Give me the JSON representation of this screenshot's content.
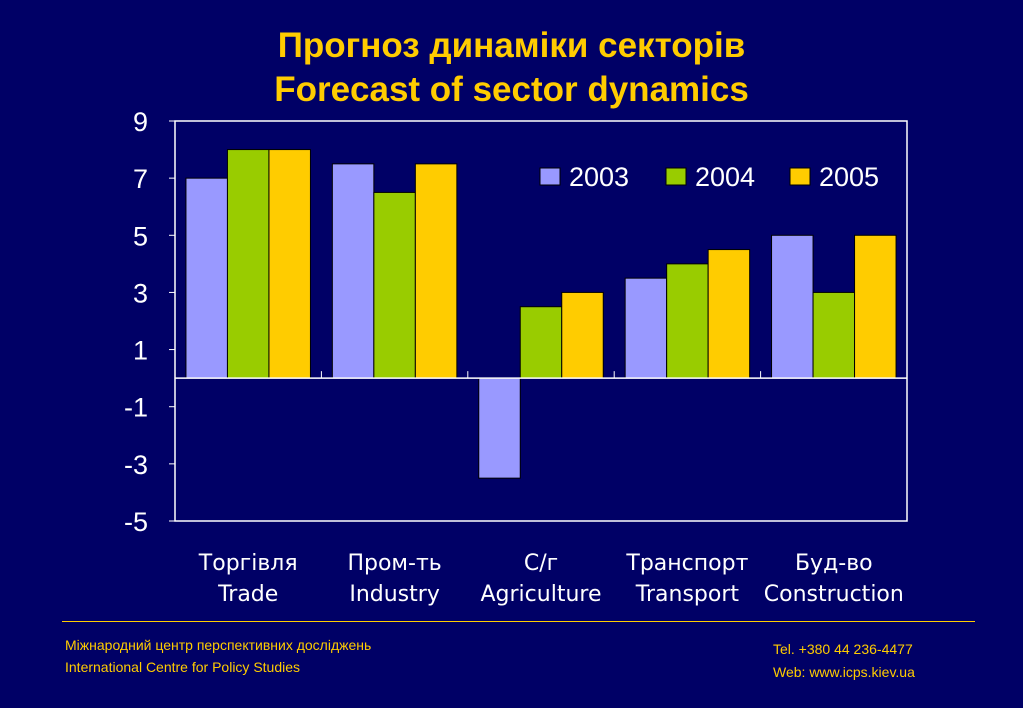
{
  "slide": {
    "title_line1": "Прогноз динаміки секторів",
    "title_line2": "Forecast of sector dynamics"
  },
  "chart_data": {
    "type": "bar",
    "categories": [
      [
        "Торгівля",
        "Trade"
      ],
      [
        "Пром-ть",
        "Industry"
      ],
      [
        "С/г",
        "Agriculture"
      ],
      [
        "Транспорт",
        "Transport"
      ],
      [
        "Буд-во",
        "Construction"
      ]
    ],
    "series": [
      {
        "name": "2003",
        "values": [
          7,
          7.5,
          -3.5,
          3.5,
          5
        ],
        "color": "#9999FF"
      },
      {
        "name": "2004",
        "values": [
          8,
          6.5,
          2.5,
          4,
          3
        ],
        "color": "#99CC00"
      },
      {
        "name": "2005",
        "values": [
          8,
          7.5,
          3,
          4.5,
          5
        ],
        "color": "#FFCC00"
      }
    ],
    "ylim": [
      -5,
      9
    ],
    "yticks": [
      9,
      7,
      5,
      3,
      1,
      -1,
      -3,
      -5
    ],
    "legend_position": "top-right",
    "grid": false
  },
  "footer": {
    "org_ua": "Міжнародний центр перспективних досліджень",
    "org_en": "International Centre for Policy Studies",
    "tel": "Tel. +380 44 236-4477",
    "web": "Web: www.icps.kiev.ua"
  },
  "colors": {
    "background": "#000066",
    "accent": "#FFCC00",
    "axis": "#FFFFFF"
  }
}
